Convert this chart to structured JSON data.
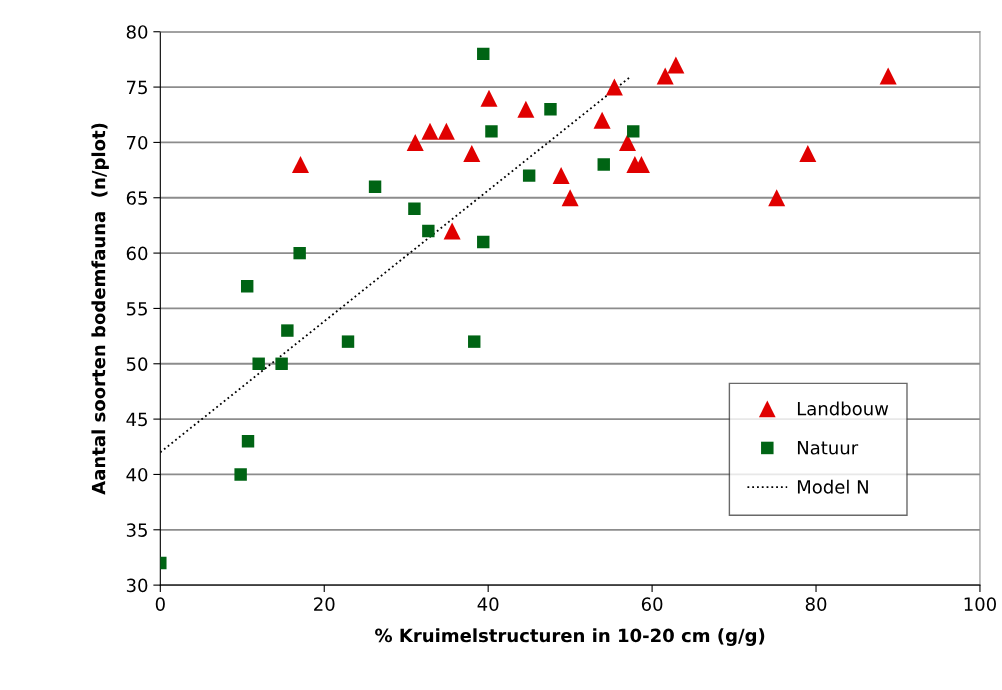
{
  "chart_data": {
    "type": "scatter",
    "xlabel": "% Kruimelstructuren in 10-20 cm (g/g)",
    "ylabel": "Aantal soorten bodemfauna  (n/plot)",
    "xlim": [
      0,
      100
    ],
    "xticks": [
      0,
      20,
      40,
      60,
      80,
      100
    ],
    "ylim": [
      30,
      80
    ],
    "yticks": [
      30,
      35,
      40,
      45,
      50,
      55,
      60,
      65,
      70,
      75,
      80
    ],
    "grid": "y",
    "legend": "bottom right",
    "series": [
      {
        "name": "Landbouw",
        "marker": "triangle",
        "color": "#e00000",
        "x": [
          17.1,
          31.1,
          32.9,
          34.9,
          35.6,
          38.0,
          40.1,
          44.6,
          48.9,
          50.0,
          53.9,
          55.4,
          57.0,
          57.9,
          58.7,
          61.6,
          62.9,
          75.2,
          79.0,
          88.8
        ],
        "values": [
          68,
          70,
          71,
          71,
          62,
          69,
          74,
          73,
          67,
          65,
          72,
          75,
          70,
          68,
          68,
          76,
          77,
          65,
          69,
          76
        ]
      },
      {
        "name": "Natuur",
        "marker": "square",
        "color": "#006414",
        "x": [
          0,
          9.8,
          10.7,
          10.6,
          12.0,
          14.8,
          15.5,
          17.0,
          22.9,
          26.2,
          31.0,
          32.7,
          38.3,
          39.4,
          39.4,
          40.4,
          45.0,
          47.6,
          54.1,
          57.7
        ],
        "values": [
          32,
          40,
          43,
          57,
          50,
          50,
          53,
          60,
          52,
          66,
          64,
          62,
          52,
          78,
          61,
          71,
          67,
          73,
          68,
          71
        ]
      },
      {
        "name": "Model N",
        "type": "line",
        "marker": "none",
        "line_style": "dotted",
        "color": "#000000",
        "x": [
          0,
          57.3
        ],
        "values": [
          42.0,
          75.9
        ]
      }
    ]
  }
}
